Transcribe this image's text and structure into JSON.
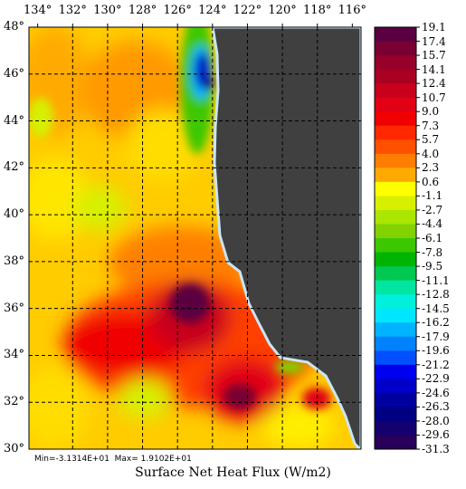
{
  "map": {
    "lon_labels": [
      "134°",
      "132°",
      "130°",
      "128°",
      "126°",
      "124°",
      "122°",
      "120°",
      "118°",
      "116°"
    ],
    "lat_labels": [
      "48°",
      "46°",
      "44°",
      "42°",
      "40°",
      "38°",
      "36°",
      "34°",
      "32°",
      "30°"
    ],
    "extent": {
      "lon": [
        -134.5,
        -115.5
      ],
      "lat": [
        30,
        48
      ]
    },
    "grid": "on",
    "land_color": "#404040",
    "coast_color": "#c8e6f5"
  },
  "colorbar": {
    "labels": [
      "19.1",
      "17.4",
      "15.7",
      "14.1",
      "12.4",
      "10.7",
      "9.0",
      "7.3",
      "5.7",
      "4.0",
      "2.3",
      "0.6",
      "-1.1",
      "-2.7",
      "-4.4",
      "-6.1",
      "-7.8",
      "-9.5",
      "-11.1",
      "-12.8",
      "-14.5",
      "-16.2",
      "-17.9",
      "-19.6",
      "-21.2",
      "-22.9",
      "-24.6",
      "-26.3",
      "-28.0",
      "-29.6",
      "-31.3"
    ],
    "colors": [
      "#5a0040",
      "#780032",
      "#96002a",
      "#aa0022",
      "#c8001c",
      "#e10014",
      "#f00000",
      "#ff2800",
      "#ff5000",
      "#ff7d00",
      "#ffaa00",
      "#ffff00",
      "#d7f000",
      "#aae600",
      "#82d200",
      "#3cc800",
      "#00b400",
      "#00c850",
      "#00e6a0",
      "#00f0dc",
      "#00e6ff",
      "#00b4ff",
      "#0082ff",
      "#0050ff",
      "#0000f0",
      "#0000c8",
      "#0000a0",
      "#000082",
      "#14006e",
      "#28005a"
    ]
  },
  "stats_text": "Min=-3.1314E+01  Max= 1.9102E+01",
  "caption": "Surface Net Heat Flux (W/m2)"
}
